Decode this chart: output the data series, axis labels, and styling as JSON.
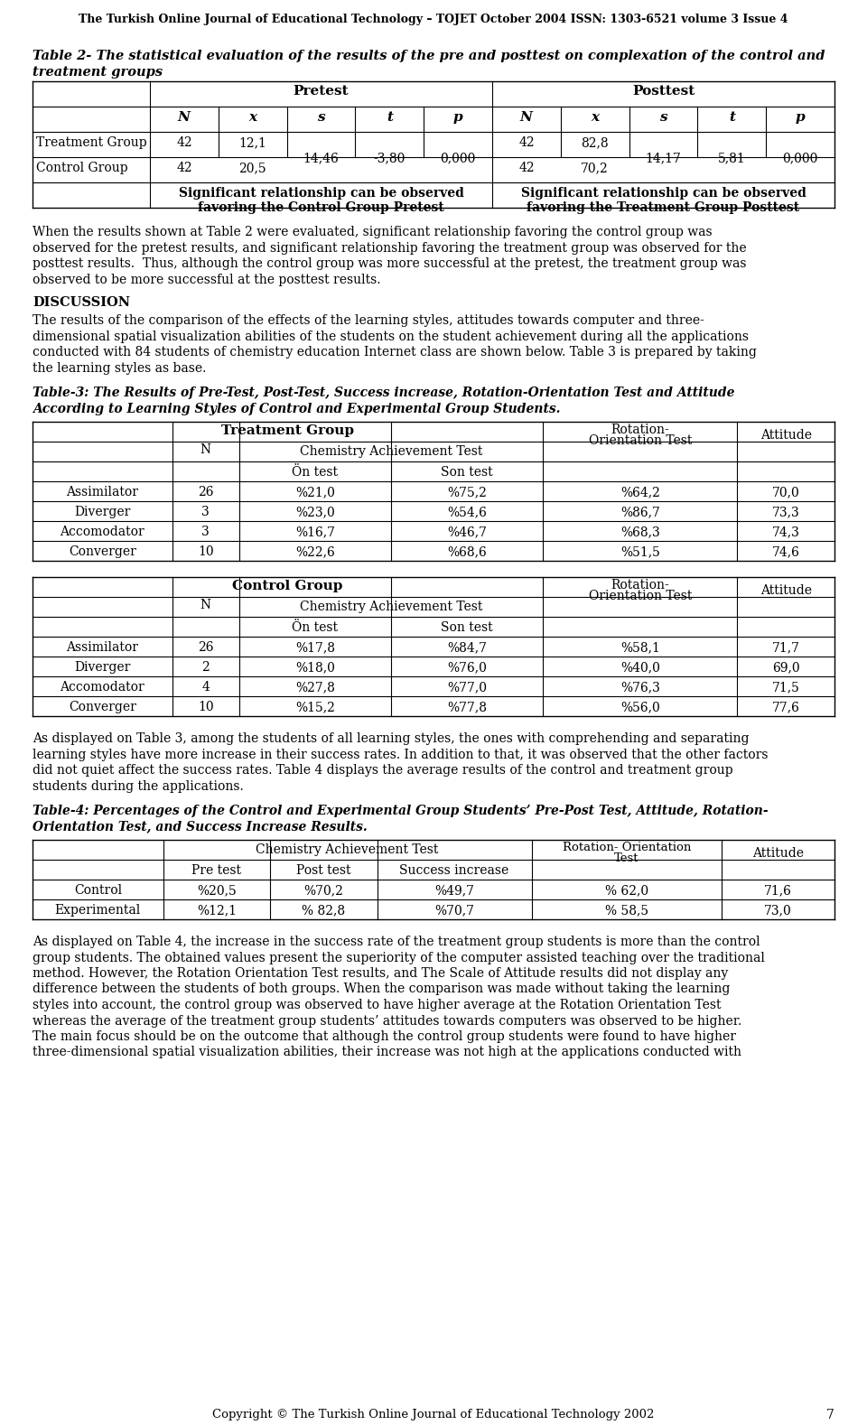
{
  "header": "The Turkish Online Journal of Educational Technology – TOJET October 2004 ISSN: 1303-6521 volume 3 Issue 4",
  "footer": "Copyright © The Turkish Online Journal of Educational Technology 2002",
  "footer_page": "7",
  "table2_title_line1": "Table 2- The statistical evaluation of the results of the pre and posttest on complexation of the control and",
  "table2_title_line2": "treatment groups",
  "table2_note_left_line1": "Significant relationship can be observed",
  "table2_note_left_line2": "favoring the Control Group Pretest",
  "table2_note_right_line1": "Significant relationship can be observed",
  "table2_note_right_line2": "favoring the Treatment Group Posttest",
  "para1_lines": [
    "When the results shown at Table 2 were evaluated, significant relationship favoring the control group was",
    "observed for the pretest results, and significant relationship favoring the treatment group was observed for the",
    "posttest results.  Thus, although the control group was more successful at the pretest, the treatment group was",
    "observed to be more successful at the posttest results."
  ],
  "discussion_heading": "DISCUSSION",
  "para2_lines": [
    "The results of the comparison of the effects of the learning styles, attitudes towards computer and three-",
    "dimensional spatial visualization abilities of the students on the student achievement during all the applications",
    "conducted with 84 students of chemistry education Internet class are shown below. Table 3 is prepared by taking",
    "the learning styles as base."
  ],
  "table3_title_line1": "Table-3: The Results of Pre-Test, Post-Test, Success increase, Rotation-Orientation Test and Attitude",
  "table3_title_line2": "According to Learning Styles of Control and Experimental Group Students.",
  "table3_tg_rows": [
    [
      "Assimilator",
      "26",
      "%21,0",
      "%75,2",
      "%64,2",
      "70,0"
    ],
    [
      "Diverger",
      "3",
      "%23,0",
      "%54,6",
      "%86,7",
      "73,3"
    ],
    [
      "Accomodator",
      "3",
      "%16,7",
      "%46,7",
      "%68,3",
      "74,3"
    ],
    [
      "Converger",
      "10",
      "%22,6",
      "%68,6",
      "%51,5",
      "74,6"
    ]
  ],
  "table3_cg_rows": [
    [
      "Assimilator",
      "26",
      "%17,8",
      "%84,7",
      "%58,1",
      "71,7"
    ],
    [
      "Diverger",
      "2",
      "%18,0",
      "%76,0",
      "%40,0",
      "69,0"
    ],
    [
      "Accomodator",
      "4",
      "%27,8",
      "%77,0",
      "%76,3",
      "71,5"
    ],
    [
      "Converger",
      "10",
      "%15,2",
      "%77,8",
      "%56,0",
      "77,6"
    ]
  ],
  "para3_lines": [
    "As displayed on Table 3, among the students of all learning styles, the ones with comprehending and separating",
    "learning styles have more increase in their success rates. In addition to that, it was observed that the other factors",
    "did not quiet affect the success rates. Table 4 displays the average results of the control and treatment group",
    "students during the applications."
  ],
  "table4_title_line1": "Table-4: Percentages of the Control and Experimental Group Students’ Pre-Post Test, Attitude, Rotation-",
  "table4_title_line2": "Orientation Test, and Success Increase Results.",
  "table4_rows": [
    [
      "Control",
      "%20,5",
      "%70,2",
      "%49,7",
      "% 62,0",
      "71,6"
    ],
    [
      "Experimental",
      "%12,1",
      "% 82,8",
      "%70,7",
      "% 58,5",
      "73,0"
    ]
  ],
  "para4_lines": [
    "As displayed on Table 4, the increase in the success rate of the treatment group students is more than the control",
    "group students. The obtained values present the superiority of the computer assisted teaching over the traditional",
    "method. However, the Rotation Orientation Test results, and The Scale of Attitude results did not display any",
    "difference between the students of both groups. When the comparison was made without taking the learning",
    "styles into account, the control group was observed to have higher average at the Rotation Orientation Test",
    "whereas the average of the treatment group students’ attitudes towards computers was observed to be higher.",
    "The main focus should be on the outcome that although the control group students were found to have higher",
    "three-dimensional spatial visualization abilities, their increase was not high at the applications conducted with"
  ]
}
